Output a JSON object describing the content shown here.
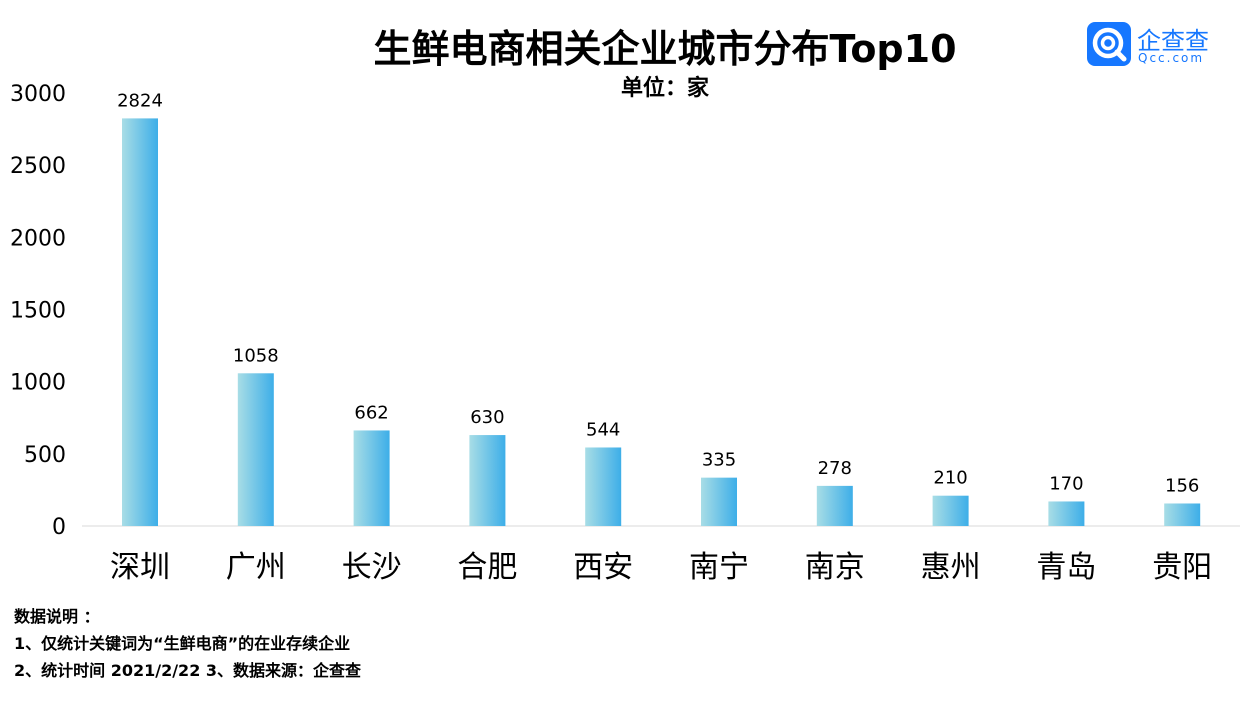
{
  "header": {
    "title": "生鲜电商相关企业城市分布Top10",
    "unit": "单位：家"
  },
  "brand": {
    "name": "企查查",
    "domain": "Qcc.com",
    "color": "#1677ff",
    "icon": "qcc-logo-icon"
  },
  "chart_data": {
    "type": "bar",
    "title": "生鲜电商相关企业城市分布Top10",
    "subtitle": "单位：家",
    "categories": [
      "深圳",
      "广州",
      "长沙",
      "合肥",
      "西安",
      "南宁",
      "南京",
      "惠州",
      "青岛",
      "贵阳"
    ],
    "values": [
      2824,
      1058,
      662,
      630,
      544,
      335,
      278,
      210,
      170,
      156
    ],
    "yticks": [
      "0",
      "500",
      "1000",
      "1500",
      "2000",
      "2500",
      "3000"
    ],
    "ylim": [
      0,
      3000
    ],
    "grid": false,
    "legend": "none",
    "bar_gradient": [
      "#a8dde6",
      "#3daee8"
    ]
  },
  "notes": {
    "heading": "数据说明 ：",
    "line1": "1、仅统计关键词为“生鲜电商”的在业存续企业",
    "line2": "2、统计时间 2021/2/22  3、数据来源：企查查"
  }
}
